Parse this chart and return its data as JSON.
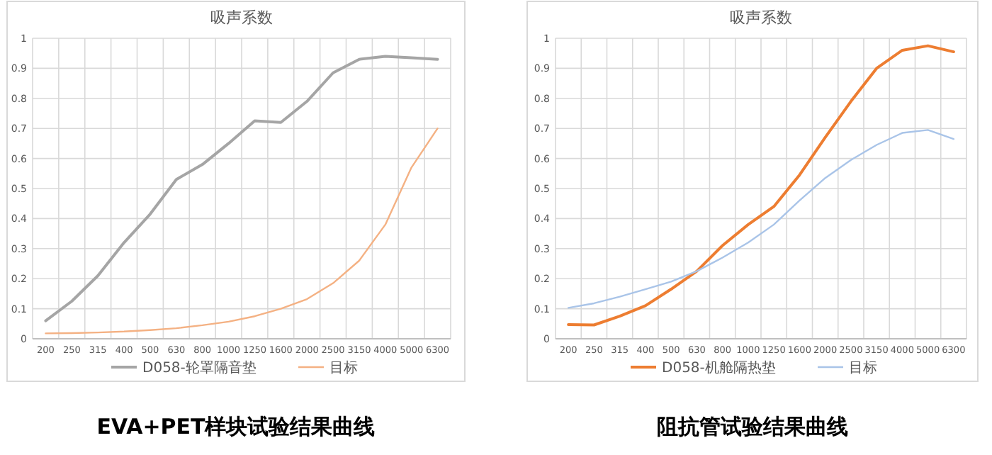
{
  "chart_data": [
    {
      "type": "line",
      "title": "吸声系数",
      "categories": [
        "200",
        "250",
        "315",
        "400",
        "500",
        "630",
        "800",
        "1000",
        "1250",
        "1600",
        "2000",
        "2500",
        "3150",
        "4000",
        "5000",
        "6300"
      ],
      "ylim": [
        0,
        1
      ],
      "yticks": [
        0,
        0.1,
        0.2,
        0.3,
        0.4,
        0.5,
        0.6,
        0.7,
        0.8,
        0.9,
        1
      ],
      "grid": true,
      "legend": "bottom",
      "marker": "none",
      "annotations": [
        "EVA+PET样块试验结果曲线"
      ],
      "series": [
        {
          "name": "D058-轮罩隔音垫",
          "color": "#a5a5a5",
          "values": [
            0.06,
            0.125,
            0.21,
            0.32,
            0.415,
            0.53,
            0.58,
            0.65,
            0.725,
            0.72,
            0.79,
            0.885,
            0.93,
            0.94,
            0.935,
            0.93
          ]
        },
        {
          "name": "目标",
          "color": "#f4b183",
          "values": [
            0.018,
            0.019,
            0.021,
            0.024,
            0.029,
            0.035,
            0.045,
            0.057,
            0.075,
            0.1,
            0.132,
            0.185,
            0.26,
            0.38,
            0.57,
            0.7
          ]
        }
      ]
    },
    {
      "type": "line",
      "title": "吸声系数",
      "categories": [
        "200",
        "250",
        "315",
        "400",
        "500",
        "630",
        "800",
        "1000",
        "1250",
        "1600",
        "2000",
        "2500",
        "3150",
        "4000",
        "5000",
        "6300"
      ],
      "ylim": [
        0,
        1
      ],
      "yticks": [
        0,
        0.1,
        0.2,
        0.3,
        0.4,
        0.5,
        0.6,
        0.7,
        0.8,
        0.9,
        1
      ],
      "grid": true,
      "legend": "bottom",
      "marker": "none",
      "annotations": [
        "阻抗管试验结果曲线"
      ],
      "series": [
        {
          "name": "D058-机舱隔热垫",
          "color": "#ed7d31",
          "values": [
            0.047,
            0.046,
            0.075,
            0.11,
            0.165,
            0.225,
            0.31,
            0.38,
            0.44,
            0.545,
            0.67,
            0.79,
            0.9,
            0.96,
            0.975,
            0.955
          ]
        },
        {
          "name": "目标",
          "color": "#a9c4e8",
          "values": [
            0.103,
            0.118,
            0.14,
            0.165,
            0.19,
            0.225,
            0.27,
            0.32,
            0.38,
            0.46,
            0.535,
            0.595,
            0.645,
            0.685,
            0.695,
            0.665
          ]
        }
      ]
    }
  ]
}
